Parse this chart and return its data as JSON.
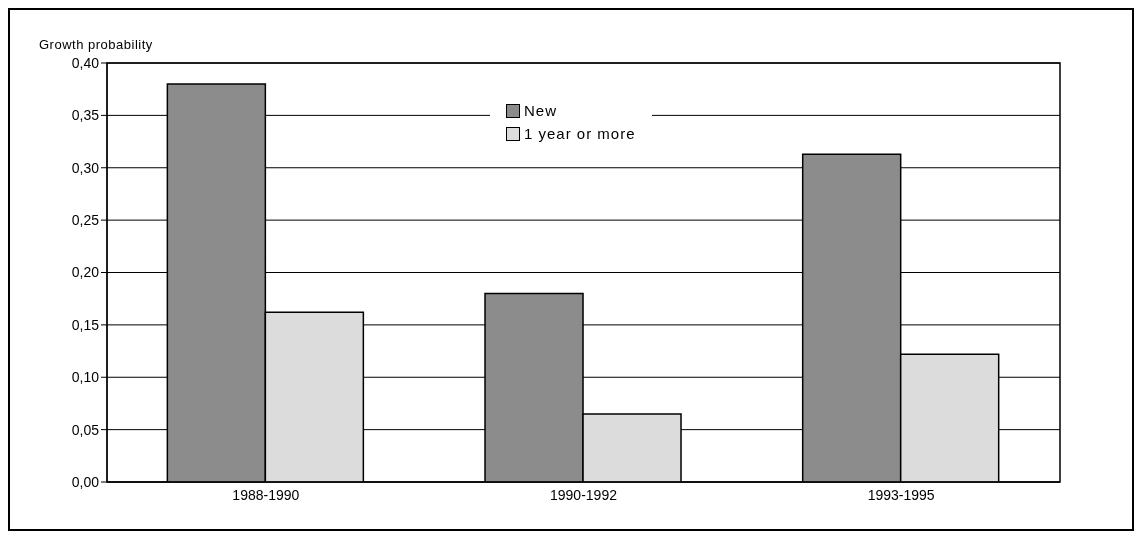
{
  "chart_data": {
    "type": "bar",
    "ylabel": "Growth probability",
    "categories": [
      "1988-1990",
      "1990-1992",
      "1993-1995"
    ],
    "series": [
      {
        "name": "New",
        "color": "#8c8c8c",
        "values": [
          0.38,
          0.18,
          0.313
        ]
      },
      {
        "name": "1 year or more",
        "color": "#dcdcdc",
        "values": [
          0.162,
          0.065,
          0.122
        ]
      }
    ],
    "ylim": [
      0,
      0.4
    ],
    "yticks": [
      {
        "value": 0,
        "label": "0,00"
      },
      {
        "value": 0.05,
        "label": "0,05"
      },
      {
        "value": 0.1,
        "label": "0,10"
      },
      {
        "value": 0.15,
        "label": "0,15"
      },
      {
        "value": 0.2,
        "label": "0,20"
      },
      {
        "value": 0.25,
        "label": "0,25"
      },
      {
        "value": 0.3,
        "label": "0,30"
      },
      {
        "value": 0.35,
        "label": "0,35"
      },
      {
        "value": 0.4,
        "label": "0,40"
      }
    ],
    "grid": "y",
    "legend": "top"
  }
}
